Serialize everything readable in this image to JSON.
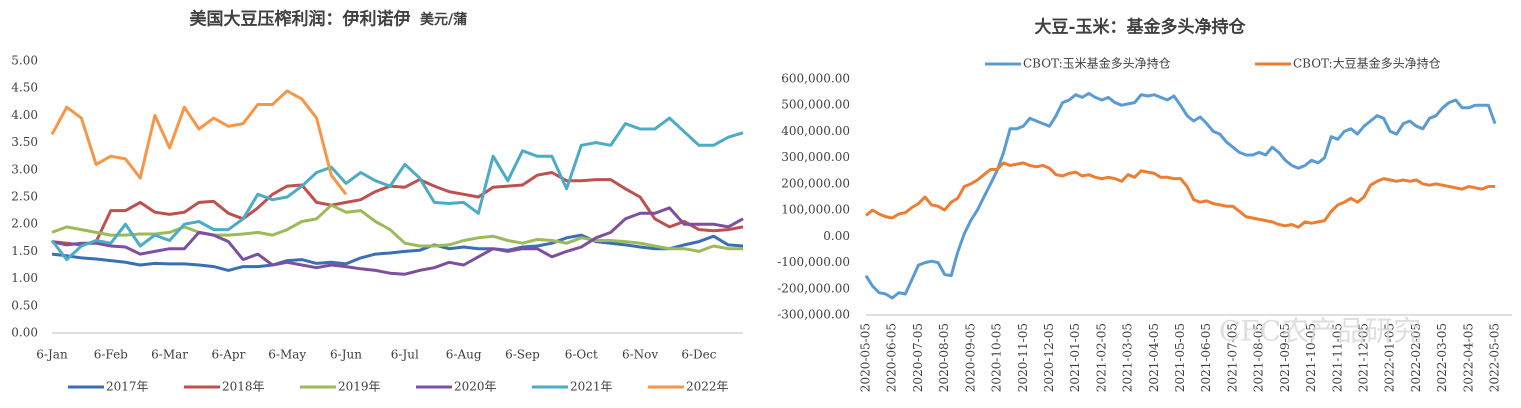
{
  "chart_data": [
    {
      "type": "line",
      "title": "美国大豆压榨利润：伊利诺伊",
      "unit": "美元/蒲",
      "categories": [
        "6-Jan",
        null,
        null,
        null,
        "6-Feb",
        null,
        null,
        null,
        "6-Mar",
        null,
        null,
        null,
        "6-Apr",
        null,
        null,
        null,
        "6-May",
        null,
        null,
        null,
        "6-Jun",
        null,
        null,
        null,
        "6-Jul",
        null,
        null,
        null,
        "6-Aug",
        null,
        null,
        null,
        "6-Sep",
        null,
        null,
        null,
        "6-Oct",
        null,
        null,
        null,
        "6-Nov",
        null,
        null,
        null,
        "6-Dec",
        null,
        null,
        null
      ],
      "ylim": [
        0,
        5
      ],
      "yticks": [
        {
          "value": 0,
          "label": "0.00"
        },
        {
          "value": 0.5,
          "label": "0.50"
        },
        {
          "value": 1,
          "label": "1.00"
        },
        {
          "value": 1.5,
          "label": "1.50"
        },
        {
          "value": 2,
          "label": "2.00"
        },
        {
          "value": 2.5,
          "label": "2.50"
        },
        {
          "value": 3,
          "label": "3.00"
        },
        {
          "value": 3.5,
          "label": "3.50"
        },
        {
          "value": 4,
          "label": "4.00"
        },
        {
          "value": 4.5,
          "label": "4.50"
        },
        {
          "value": 5,
          "label": "5.00"
        }
      ],
      "legend": "bottom",
      "series": [
        {
          "name": "2017年",
          "color": "#3a6fb5",
          "values": [
            1.45,
            1.42,
            1.38,
            1.36,
            1.33,
            1.3,
            1.25,
            1.28,
            1.27,
            1.27,
            1.25,
            1.22,
            1.15,
            1.22,
            1.22,
            1.25,
            1.33,
            1.35,
            1.28,
            1.3,
            1.27,
            1.38,
            1.45,
            1.47,
            1.5,
            1.52,
            1.62,
            1.55,
            1.58,
            1.55,
            1.55,
            1.52,
            1.58,
            1.6,
            1.65,
            1.75,
            1.8,
            1.68,
            1.65,
            1.62,
            1.58,
            1.55,
            1.55,
            1.62,
            1.68,
            1.78,
            1.62,
            1.6
          ]
        },
        {
          "name": "2018年",
          "color": "#c0504d",
          "values": [
            1.68,
            1.65,
            1.62,
            1.68,
            2.25,
            2.25,
            2.4,
            2.22,
            2.18,
            2.22,
            2.4,
            2.42,
            2.2,
            2.1,
            2.3,
            2.55,
            2.7,
            2.72,
            2.4,
            2.35,
            2.4,
            2.45,
            2.6,
            2.7,
            2.68,
            2.82,
            2.7,
            2.6,
            2.55,
            2.5,
            2.68,
            2.7,
            2.72,
            2.9,
            2.95,
            2.8,
            2.8,
            2.82,
            2.82,
            2.65,
            2.5,
            2.1,
            1.95,
            2.05,
            1.9,
            1.88,
            1.9,
            1.95
          ]
        },
        {
          "name": "2019年",
          "color": "#9bbb59",
          "values": [
            1.85,
            1.95,
            1.9,
            1.85,
            1.8,
            1.8,
            1.82,
            1.82,
            1.85,
            1.95,
            1.85,
            1.8,
            1.8,
            1.82,
            1.85,
            1.8,
            1.9,
            2.05,
            2.1,
            2.35,
            2.22,
            2.25,
            2.05,
            1.9,
            1.65,
            1.6,
            1.6,
            1.62,
            1.7,
            1.75,
            1.78,
            1.7,
            1.65,
            1.72,
            1.7,
            1.65,
            1.75,
            1.7,
            1.7,
            1.68,
            1.65,
            1.6,
            1.55,
            1.55,
            1.5,
            1.6,
            1.55,
            1.55
          ]
        },
        {
          "name": "2020年",
          "color": "#7f4f9f",
          "values": [
            1.68,
            1.62,
            1.65,
            1.65,
            1.6,
            1.58,
            1.45,
            1.5,
            1.55,
            1.55,
            1.85,
            1.8,
            1.68,
            1.35,
            1.45,
            1.25,
            1.3,
            1.25,
            1.2,
            1.25,
            1.22,
            1.18,
            1.15,
            1.1,
            1.08,
            1.15,
            1.2,
            1.3,
            1.25,
            1.4,
            1.55,
            1.5,
            1.55,
            1.55,
            1.4,
            1.5,
            1.58,
            1.75,
            1.85,
            2.1,
            2.2,
            2.2,
            2.3,
            2.0,
            2.0,
            2.0,
            1.95,
            2.1
          ]
        },
        {
          "name": "2021年",
          "color": "#4bacc6",
          "values": [
            1.7,
            1.35,
            1.6,
            1.7,
            1.65,
            2.0,
            1.6,
            1.8,
            1.7,
            2.0,
            2.05,
            1.9,
            1.9,
            2.1,
            2.55,
            2.45,
            2.5,
            2.7,
            2.95,
            3.05,
            2.75,
            2.95,
            2.8,
            2.7,
            3.1,
            2.85,
            2.4,
            2.38,
            2.4,
            2.2,
            3.25,
            2.8,
            3.35,
            3.25,
            3.25,
            2.65,
            3.45,
            3.5,
            3.45,
            3.85,
            3.75,
            3.75,
            3.95,
            3.7,
            3.45,
            3.45,
            3.6,
            3.68
          ]
        },
        {
          "name": "2022年",
          "color": "#f79646",
          "values": [
            3.65,
            4.15,
            3.95,
            3.1,
            3.25,
            3.2,
            2.85,
            4.0,
            3.4,
            4.15,
            3.75,
            3.95,
            3.8,
            3.85,
            4.2,
            4.2,
            4.45,
            4.3,
            3.95,
            2.9,
            2.55,
            null,
            null,
            null,
            null,
            null,
            null,
            null,
            null,
            null,
            null,
            null,
            null,
            null,
            null,
            null,
            null,
            null,
            null,
            null,
            null,
            null,
            null,
            null,
            null,
            null,
            null,
            null
          ]
        }
      ]
    },
    {
      "type": "line",
      "title": "大豆-玉米：基金多头净持仓",
      "categories": [
        "2020-05-05",
        null,
        null,
        null,
        "2020-06-05",
        null,
        null,
        null,
        "2020-07-05",
        null,
        null,
        null,
        "2020-08-05",
        null,
        null,
        null,
        "2020-09-05",
        null,
        null,
        null,
        "2020-10-05",
        null,
        null,
        null,
        "2020-11-05",
        null,
        null,
        null,
        "2020-12-05",
        null,
        null,
        null,
        "2021-01-05",
        null,
        null,
        null,
        "2021-02-05",
        null,
        null,
        null,
        "2021-03-05",
        null,
        null,
        null,
        "2021-04-05",
        null,
        null,
        null,
        "2021-05-05",
        null,
        null,
        null,
        "2021-06-05",
        null,
        null,
        null,
        "2021-07-05",
        null,
        null,
        null,
        "2021-08-05",
        null,
        null,
        null,
        "2021-09-05",
        null,
        null,
        null,
        "2021-10-05",
        null,
        null,
        null,
        "2021-11-05",
        null,
        null,
        null,
        "2021-12-05",
        null,
        null,
        null,
        "2022-01-05",
        null,
        null,
        null,
        "2022-02-05",
        null,
        null,
        null,
        "2022-03-05",
        null,
        null,
        null,
        "2022-04-05",
        null,
        null,
        null,
        "2022-05-05"
      ],
      "ylim": [
        -300000,
        600000
      ],
      "yticks": [
        {
          "value": -300000,
          "label": "-300,000.00"
        },
        {
          "value": -200000,
          "label": "-200,000.00"
        },
        {
          "value": -100000,
          "label": "-100,000.00"
        },
        {
          "value": 0,
          "label": "0.00"
        },
        {
          "value": 100000,
          "label": "100,000.00"
        },
        {
          "value": 200000,
          "label": "200,000.00"
        },
        {
          "value": 300000,
          "label": "300,000.00"
        },
        {
          "value": 400000,
          "label": "400,000.00"
        },
        {
          "value": 500000,
          "label": "500,000.00"
        },
        {
          "value": 600000,
          "label": "600,000.00"
        }
      ],
      "legend": "top",
      "watermark": "CFC农产品研究",
      "series": [
        {
          "name": "CBOT:玉米基金多头净持仓",
          "color": "#5b9bd5",
          "values": [
            -150000,
            -190000,
            -215000,
            -220000,
            -235000,
            -215000,
            -220000,
            -165000,
            -110000,
            -100000,
            -95000,
            -100000,
            -145000,
            -150000,
            -60000,
            10000,
            60000,
            100000,
            150000,
            200000,
            250000,
            320000,
            410000,
            410000,
            420000,
            450000,
            440000,
            430000,
            420000,
            460000,
            510000,
            520000,
            540000,
            530000,
            545000,
            530000,
            520000,
            530000,
            510000,
            500000,
            505000,
            510000,
            540000,
            535000,
            540000,
            530000,
            520000,
            535000,
            500000,
            460000,
            440000,
            455000,
            430000,
            400000,
            390000,
            360000,
            340000,
            320000,
            310000,
            310000,
            320000,
            310000,
            340000,
            320000,
            290000,
            270000,
            260000,
            270000,
            290000,
            280000,
            300000,
            380000,
            370000,
            400000,
            410000,
            390000,
            420000,
            440000,
            460000,
            450000,
            400000,
            390000,
            430000,
            440000,
            420000,
            410000,
            450000,
            460000,
            490000,
            510000,
            520000,
            490000,
            490000,
            500000,
            500000,
            500000,
            430000
          ]
        },
        {
          "name": "CBOT:大豆基金多头净持仓",
          "color": "#ed7d31",
          "values": [
            80000,
            100000,
            85000,
            75000,
            70000,
            85000,
            90000,
            110000,
            125000,
            150000,
            120000,
            115000,
            100000,
            130000,
            145000,
            190000,
            200000,
            215000,
            235000,
            255000,
            255000,
            280000,
            270000,
            275000,
            280000,
            270000,
            265000,
            270000,
            260000,
            235000,
            230000,
            240000,
            245000,
            230000,
            235000,
            225000,
            220000,
            225000,
            220000,
            210000,
            235000,
            225000,
            250000,
            245000,
            240000,
            225000,
            225000,
            220000,
            220000,
            190000,
            140000,
            130000,
            135000,
            125000,
            120000,
            115000,
            115000,
            95000,
            75000,
            70000,
            65000,
            60000,
            55000,
            45000,
            40000,
            45000,
            35000,
            55000,
            50000,
            55000,
            60000,
            95000,
            120000,
            130000,
            145000,
            130000,
            150000,
            195000,
            210000,
            220000,
            215000,
            210000,
            215000,
            210000,
            215000,
            200000,
            195000,
            200000,
            195000,
            190000,
            185000,
            180000,
            190000,
            185000,
            180000,
            190000,
            190000
          ]
        }
      ]
    }
  ]
}
